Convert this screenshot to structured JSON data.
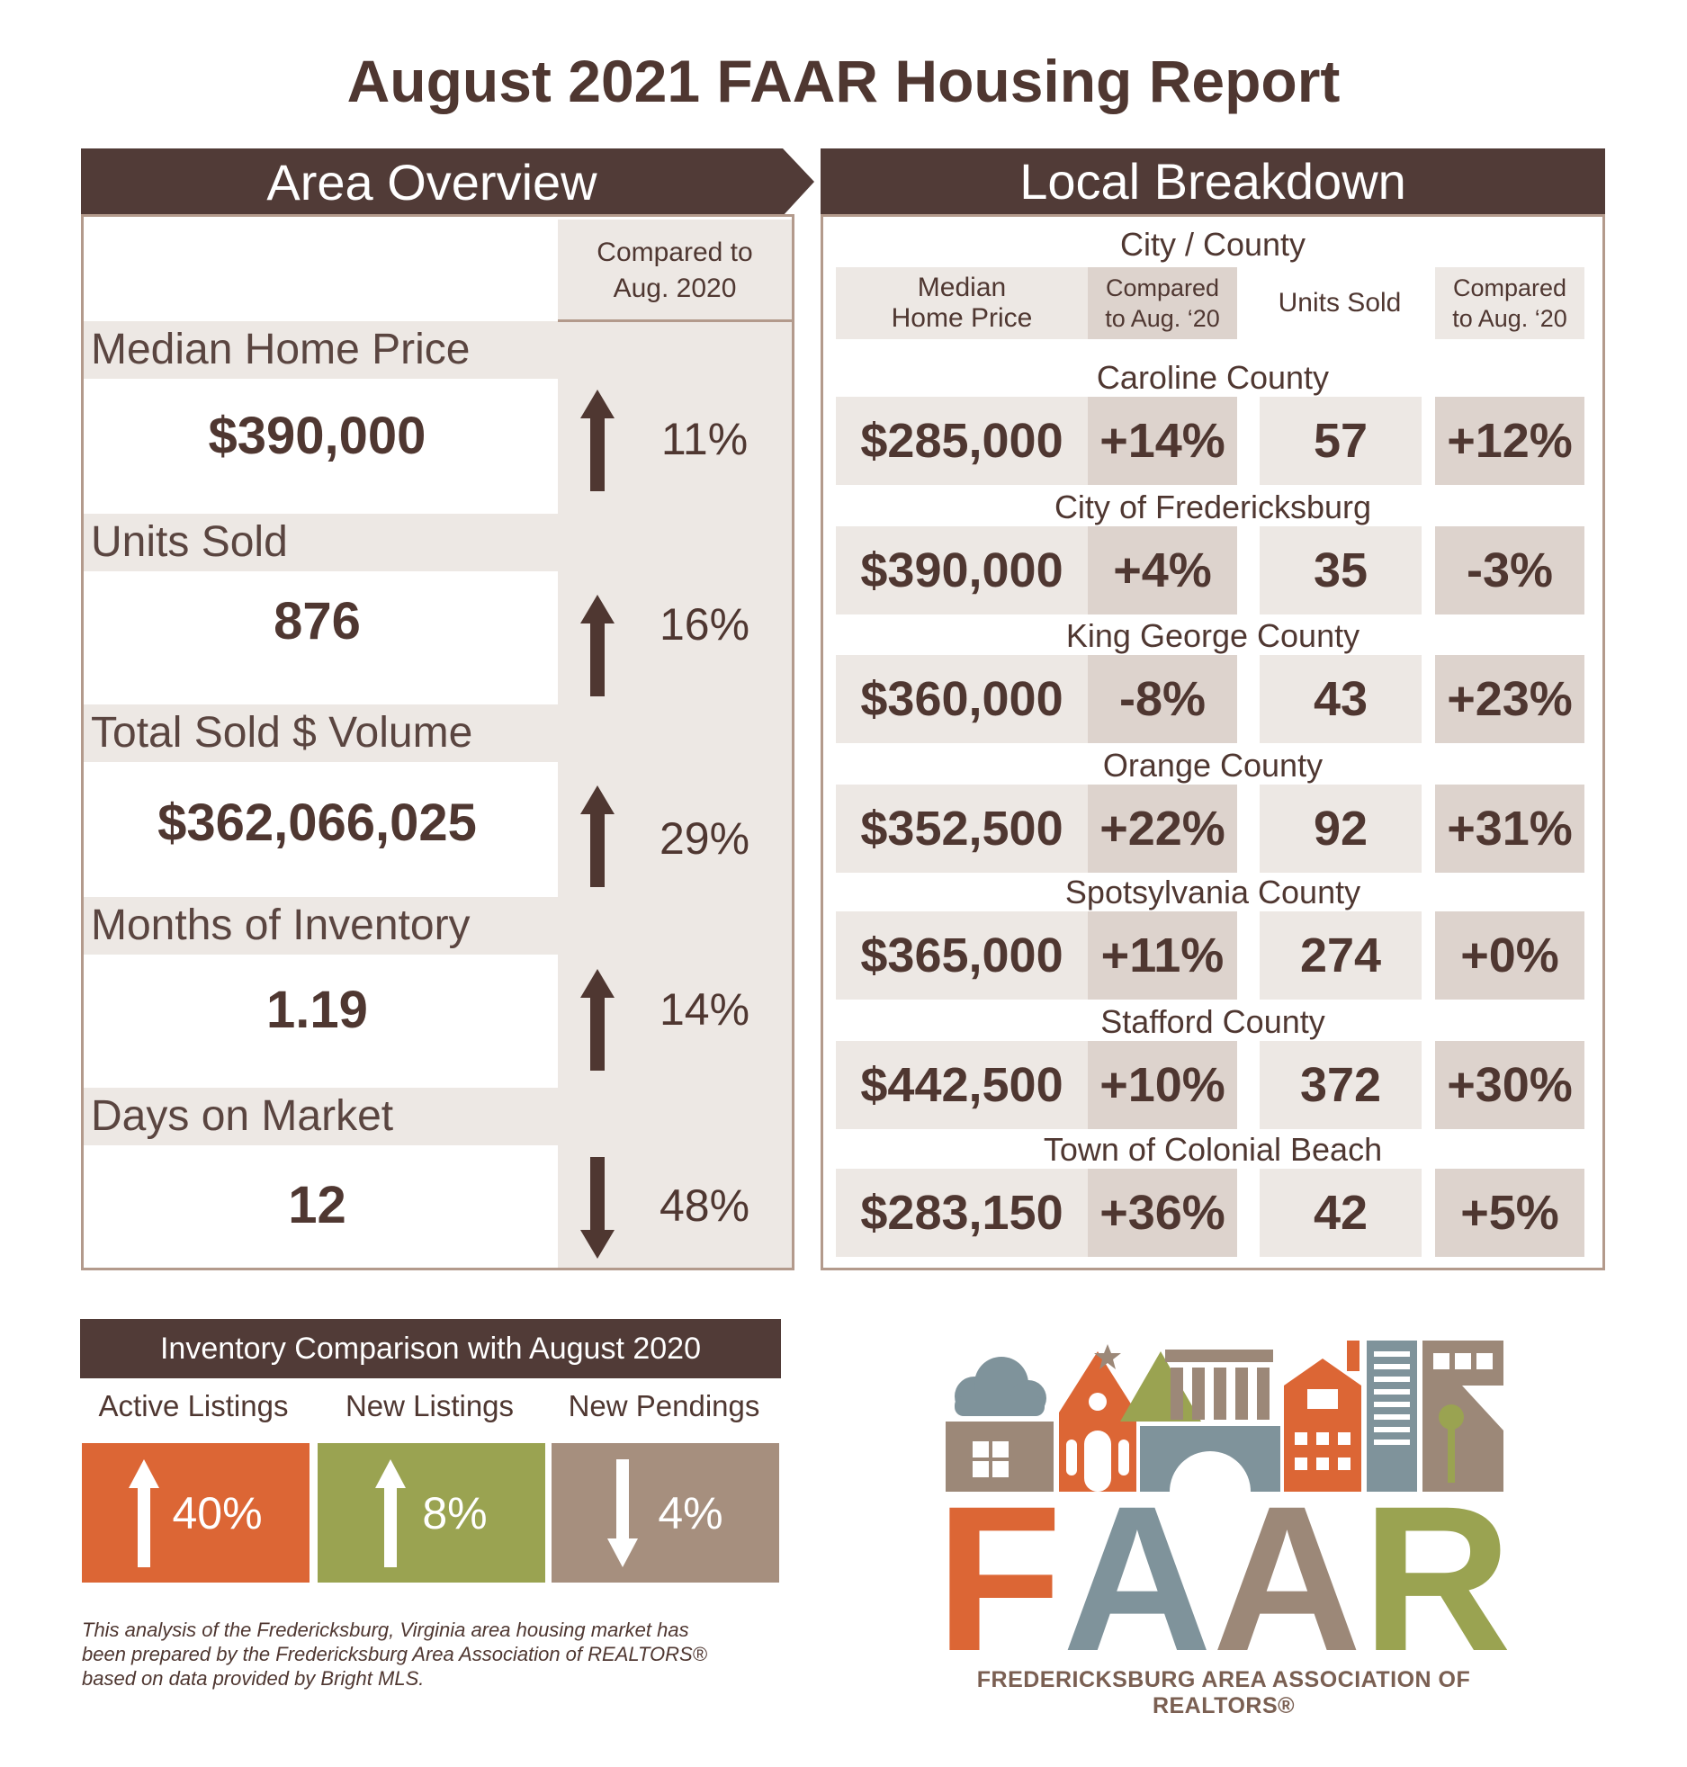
{
  "title": "August 2021 FAAR Housing Report",
  "area_overview": {
    "header": "Area Overview",
    "compared_header": [
      "Compared to",
      "Aug. 2020"
    ],
    "metrics": [
      {
        "label": "Median Home Price",
        "value": "$390,000",
        "direction": "up",
        "change": "11%"
      },
      {
        "label": "Units Sold",
        "value": "876",
        "direction": "up",
        "change": "16%"
      },
      {
        "label": "Total Sold $ Volume",
        "value": "$362,066,025",
        "direction": "up",
        "change": "29%"
      },
      {
        "label": "Months of Inventory",
        "value": "1.19",
        "direction": "up",
        "change": "14%"
      },
      {
        "label": "Days on Market",
        "value": "12",
        "direction": "down",
        "change": "48%"
      }
    ]
  },
  "local_breakdown": {
    "header": "Local Breakdown",
    "subheader": "City / County",
    "columns": [
      [
        "Median",
        "Home Price"
      ],
      [
        "Compared",
        "to Aug. ‘20"
      ],
      [
        "Units Sold"
      ],
      [
        "Compared",
        "to Aug. ‘20"
      ]
    ],
    "rows": [
      {
        "name": "Caroline County",
        "price": "$285,000",
        "price_change": "+14%",
        "units": "57",
        "units_change": "+12%"
      },
      {
        "name": "City of Fredericksburg",
        "price": "$390,000",
        "price_change": "+4%",
        "units": "35",
        "units_change": "-3%"
      },
      {
        "name": "King George County",
        "price": "$360,000",
        "price_change": "-8%",
        "units": "43",
        "units_change": "+23%"
      },
      {
        "name": "Orange County",
        "price": "$352,500",
        "price_change": "+22%",
        "units": "92",
        "units_change": "+31%"
      },
      {
        "name": "Spotsylvania County",
        "price": "$365,000",
        "price_change": "+11%",
        "units": "274",
        "units_change": "+0%"
      },
      {
        "name": "Stafford County",
        "price": "$442,500",
        "price_change": "+10%",
        "units": "372",
        "units_change": "+30%"
      },
      {
        "name": "Town of Colonial Beach",
        "price": "$283,150",
        "price_change": "+36%",
        "units": "42",
        "units_change": "+5%"
      }
    ]
  },
  "inventory": {
    "header": "Inventory Comparison with August 2020",
    "items": [
      {
        "label": "Active Listings",
        "direction": "up",
        "change": "40%",
        "color": "#dc6635"
      },
      {
        "label": "New Listings",
        "direction": "up",
        "change": "8%",
        "color": "#9aa351"
      },
      {
        "label": "New Pendings",
        "direction": "down",
        "change": "4%",
        "color": "#a68f7e"
      }
    ]
  },
  "footnote": [
    "This analysis of the Fredericksburg, Virginia area housing market has",
    "been prepared by the Fredericksburg Area Association of REALTORS®",
    "based on data provided by Bright MLS."
  ],
  "logo": {
    "wordmark": "FAAR",
    "tagline": "FREDERICKSBURG AREA ASSOCIATION OF REALTORS®",
    "letter_colors": [
      "#dc6635",
      "#7f939b",
      "#9c8878",
      "#9aa351"
    ]
  },
  "colors": {
    "header_bg": "#513b37",
    "text": "#4f3731",
    "panel_border": "#b39a8c",
    "beige": "#ede8e4",
    "tan": "#ddd3cd"
  }
}
